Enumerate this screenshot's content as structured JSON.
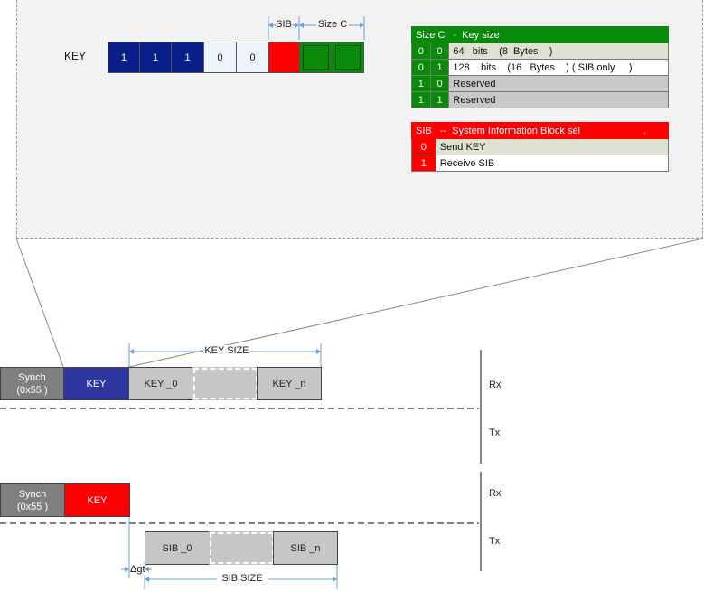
{
  "register": {
    "label": "KEY",
    "bits": [
      "1",
      "1",
      "1",
      "0",
      "0"
    ],
    "sib_label": "SIB",
    "sizec_label": "Size C"
  },
  "sizec_table": {
    "header_left": "Size C",
    "header_right": "-  Key size",
    "rows": [
      {
        "b1": "0",
        "b0": "0",
        "text": "64   bits    (8  Bytes    )"
      },
      {
        "b1": "0",
        "b0": "1",
        "text": "128    bits    (16   Bytes    ) ( SIB only     )"
      },
      {
        "b1": "1",
        "b0": "0",
        "text": "Reserved"
      },
      {
        "b1": "1",
        "b0": "1",
        "text": "Reserved"
      }
    ]
  },
  "sib_table": {
    "header_left": "SIB",
    "header_right": "--  System Information Block sel",
    "header_dot": ".",
    "rows": [
      {
        "b": "0",
        "text": "Send KEY"
      },
      {
        "b": "1",
        "text": "Receive SIB"
      }
    ]
  },
  "seq1": {
    "synch_line1": "Synch",
    "synch_line2": "(0x55 )",
    "key": "KEY",
    "key0": "KEY   _0",
    "keyn": "KEY   _n",
    "key_size": "KEY SIZE",
    "rx": "Rx",
    "tx": "Tx"
  },
  "seq2": {
    "synch_line1": "Synch",
    "synch_line2": "(0x55 )",
    "key": "KEY",
    "sib0": "SIB   _0",
    "sibn": "SIB   _n",
    "sib_size": "SIB SIZE",
    "dgt": "Δgt",
    "rx": "Rx",
    "tx": "Tx"
  },
  "colors": {
    "green": "#0a8a0a",
    "red": "#ff0000",
    "navy": "#0a1f8a",
    "key_blue": "#2e36a0",
    "synch_gray": "#7f7f7f",
    "data_gray": "#c6c6c6"
  }
}
